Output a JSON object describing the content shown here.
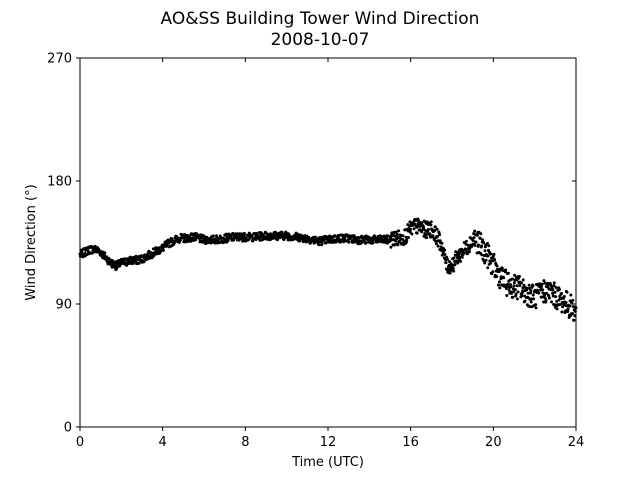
{
  "chart_data": {
    "type": "scatter",
    "title": "AO&SS Building Tower Wind Direction",
    "subtitle": "2008-10-07",
    "xlabel": "Time (UTC)",
    "ylabel": "Wind Direction (°)",
    "xlim": [
      0,
      24
    ],
    "ylim": [
      0,
      270
    ],
    "xticks": [
      0,
      4,
      8,
      12,
      16,
      20,
      24
    ],
    "yticks": [
      0,
      90,
      180,
      270
    ],
    "grid": false,
    "marker_color": "#000000",
    "series": [
      {
        "x": [
          0.0,
          0.25,
          0.5,
          0.75,
          1.0,
          1.25,
          1.5,
          1.75,
          2.0,
          2.25,
          2.5,
          2.75,
          3.0,
          3.25,
          3.5,
          3.75,
          4.0,
          4.25,
          4.5,
          4.75,
          5.0,
          5.5,
          6.0,
          6.5,
          7.0,
          7.5,
          8.0,
          8.5,
          9.0,
          9.5,
          10.0,
          10.5,
          11.0,
          11.5,
          12.0,
          12.5,
          13.0,
          13.5,
          14.0,
          14.5,
          15.0,
          15.25,
          15.5,
          15.75,
          16.0,
          16.25,
          16.5,
          16.75,
          17.0,
          17.25,
          17.5,
          17.75,
          18.0,
          18.25,
          18.5,
          18.75,
          19.0,
          19.25,
          19.5,
          19.75,
          20.0,
          20.25,
          20.5,
          20.75,
          21.0,
          21.25,
          21.5,
          21.75,
          22.0,
          22.25,
          22.5,
          22.75,
          23.0,
          23.25,
          23.5,
          23.75,
          24.0
        ],
        "y": [
          126,
          128,
          130,
          130,
          128,
          124,
          120,
          118,
          120,
          121,
          122,
          122,
          123,
          125,
          127,
          129,
          131,
          134,
          136,
          138,
          138,
          139,
          137,
          137,
          138,
          139,
          139,
          139,
          140,
          140,
          140,
          139,
          138,
          136,
          137,
          138,
          138,
          137,
          137,
          137,
          137,
          138,
          138,
          140,
          145,
          147,
          146,
          144,
          145,
          140,
          133,
          118,
          118,
          124,
          128,
          132,
          138,
          136,
          130,
          125,
          118,
          112,
          107,
          104,
          103,
          102,
          99,
          97,
          95,
          97,
          100,
          99,
          96,
          93,
          91,
          88,
          84
        ]
      }
    ]
  }
}
